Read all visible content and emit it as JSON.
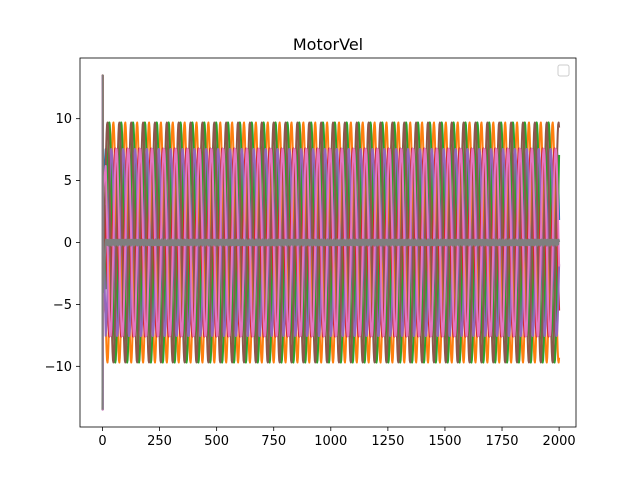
{
  "chart_data": {
    "type": "line",
    "title": "MotorVel",
    "xlabel": "",
    "ylabel": "",
    "xlim": [
      -98.5,
      2074
    ],
    "ylim": [
      -14.9,
      14.9
    ],
    "xticks": [
      0,
      250,
      500,
      750,
      1000,
      1250,
      1500,
      1750,
      2000
    ],
    "yticks": [
      -10,
      -5,
      0,
      5,
      10
    ],
    "grid": false,
    "legend": {
      "placement": "top-right",
      "entries": []
    },
    "x_range": [
      0,
      2000
    ],
    "oscillation_period": 52,
    "startup_spike": {
      "x": [
        0,
        14
      ],
      "ymin": -13.5,
      "ymax": 13.5
    },
    "series": [
      {
        "color": "#1f77b4",
        "amplitude": 7.6,
        "offset": 0,
        "phase": 0.0
      },
      {
        "color": "#ff7f0e",
        "amplitude": 9.7,
        "offset": 0,
        "phase": 2.1
      },
      {
        "color": "#2ca02c",
        "amplitude": 9.7,
        "offset": 0,
        "phase": 4.2
      },
      {
        "color": "#d62728",
        "amplitude": 7.6,
        "offset": 0,
        "phase": 1.05
      },
      {
        "color": "#9467bd",
        "amplitude": 7.6,
        "offset": 0,
        "phase": 3.15
      },
      {
        "color": "#8c564b",
        "amplitude": 9.7,
        "offset": 0,
        "phase": 5.25
      },
      {
        "color": "#e377c2",
        "amplitude": 7.6,
        "offset": 0,
        "phase": 0.5
      },
      {
        "color": "#7f7f7f",
        "amplitude": 0.25,
        "offset": 0,
        "phase": 0.0
      }
    ]
  }
}
